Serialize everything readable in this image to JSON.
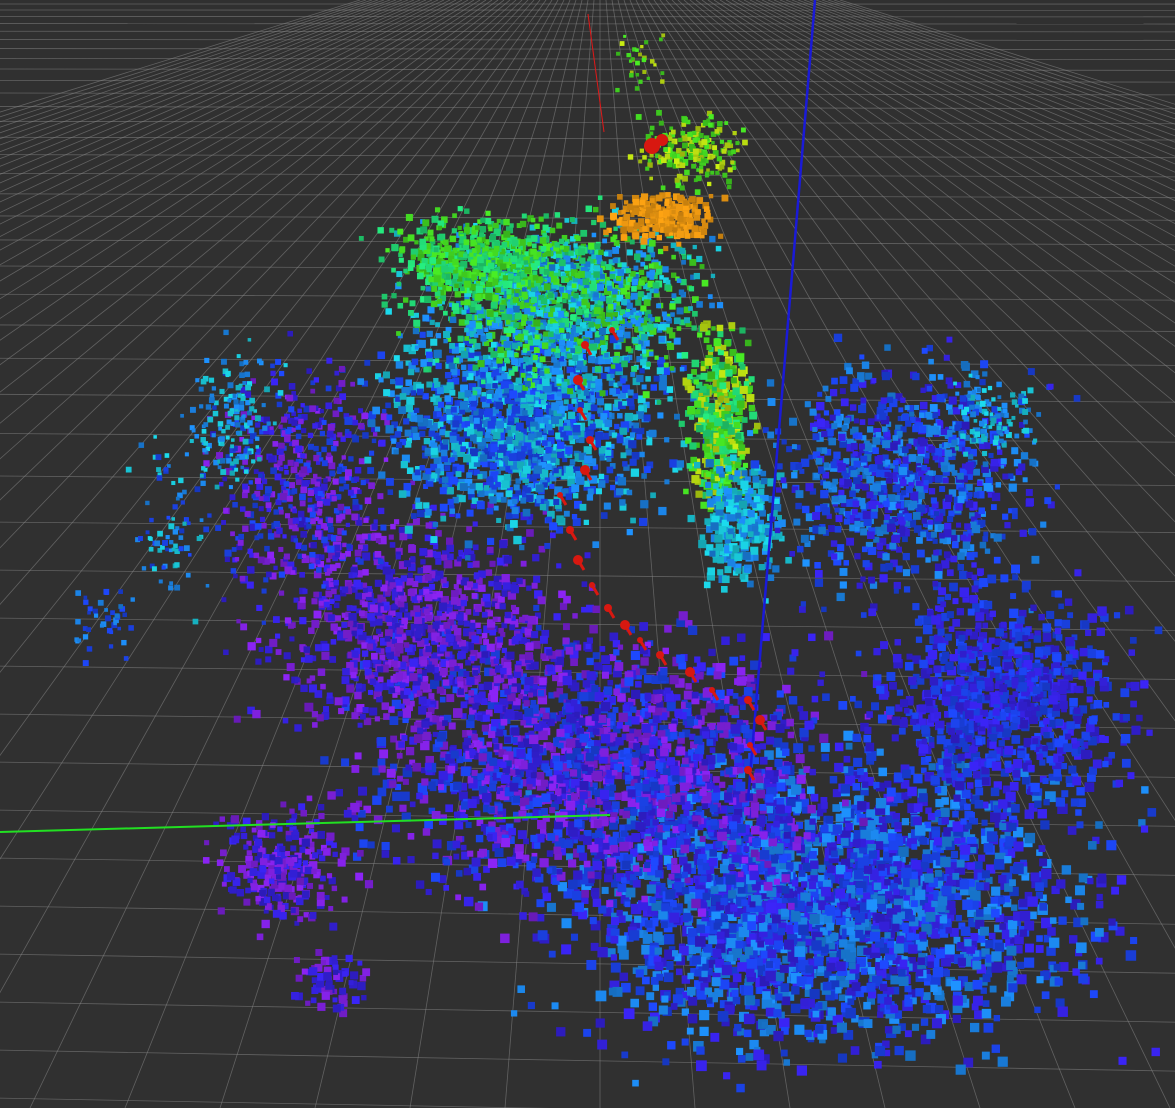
{
  "view": {
    "type": "3d-occupancy-map-viewport",
    "background": "#303030"
  },
  "grid": {
    "color": "#8a8a8a",
    "visible": true
  },
  "axes": {
    "x_color": "#e01818",
    "y_color": "#22e022",
    "z_color": "#1a1ad8"
  },
  "colormap": {
    "name": "height",
    "stops": [
      "#7a1fd6",
      "#3320d8",
      "#1a40e0",
      "#1a80e0",
      "#18c0d0",
      "#20d070",
      "#40d020",
      "#b0d010",
      "#e09010"
    ]
  },
  "trajectory": {
    "name": "pose-markers",
    "color": "#d81810",
    "visible": true
  }
}
